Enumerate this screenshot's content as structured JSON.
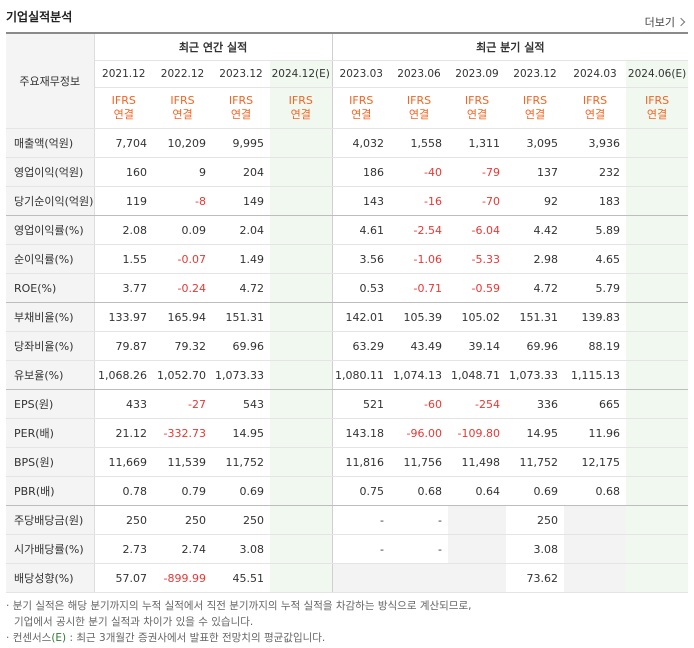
{
  "title": "기업실적분석",
  "more_label": "더보기",
  "header": {
    "row_label": "주요재무정보",
    "annual_group": "최근 연간 실적",
    "quarter_group": "최근 분기 실적",
    "annual_periods": [
      "2021.12",
      "2022.12",
      "2023.12",
      "2024.12(E)"
    ],
    "quarter_periods": [
      "2023.03",
      "2023.06",
      "2023.09",
      "2023.12",
      "2024.03",
      "2024.06(E)"
    ],
    "ifrs_top": "IFRS",
    "ifrs_bottom": "연결"
  },
  "rows": [
    {
      "label": "매출액(억원)",
      "annual": [
        "7,704",
        "10,209",
        "9,995",
        ""
      ],
      "quarter": [
        "4,032",
        "1,558",
        "1,311",
        "3,095",
        "3,936",
        ""
      ]
    },
    {
      "label": "영업이익(억원)",
      "annual": [
        "160",
        "9",
        "204",
        ""
      ],
      "quarter": [
        "186",
        "-40",
        "-79",
        "137",
        "232",
        ""
      ]
    },
    {
      "label": "당기순이익(억원)",
      "annual": [
        "119",
        "-8",
        "149",
        ""
      ],
      "quarter": [
        "143",
        "-16",
        "-70",
        "92",
        "183",
        ""
      ]
    },
    {
      "label": "영업이익률(%)",
      "annual": [
        "2.08",
        "0.09",
        "2.04",
        ""
      ],
      "quarter": [
        "4.61",
        "-2.54",
        "-6.04",
        "4.42",
        "5.89",
        ""
      ]
    },
    {
      "label": "순이익률(%)",
      "annual": [
        "1.55",
        "-0.07",
        "1.49",
        ""
      ],
      "quarter": [
        "3.56",
        "-1.06",
        "-5.33",
        "2.98",
        "4.65",
        ""
      ]
    },
    {
      "label": "ROE(%)",
      "annual": [
        "3.77",
        "-0.24",
        "4.72",
        ""
      ],
      "quarter": [
        "0.53",
        "-0.71",
        "-0.59",
        "4.72",
        "5.79",
        ""
      ]
    },
    {
      "label": "부채비율(%)",
      "annual": [
        "133.97",
        "165.94",
        "151.31",
        ""
      ],
      "quarter": [
        "142.01",
        "105.39",
        "105.02",
        "151.31",
        "139.83",
        ""
      ]
    },
    {
      "label": "당좌비율(%)",
      "annual": [
        "79.87",
        "79.32",
        "69.96",
        ""
      ],
      "quarter": [
        "63.29",
        "43.49",
        "39.14",
        "69.96",
        "88.19",
        ""
      ]
    },
    {
      "label": "유보율(%)",
      "annual": [
        "1,068.26",
        "1,052.70",
        "1,073.33",
        ""
      ],
      "quarter": [
        "1,080.11",
        "1,074.13",
        "1,048.71",
        "1,073.33",
        "1,115.13",
        ""
      ]
    },
    {
      "label": "EPS(원)",
      "annual": [
        "433",
        "-27",
        "543",
        ""
      ],
      "quarter": [
        "521",
        "-60",
        "-254",
        "336",
        "665",
        ""
      ]
    },
    {
      "label": "PER(배)",
      "annual": [
        "21.12",
        "-332.73",
        "14.95",
        ""
      ],
      "quarter": [
        "143.18",
        "-96.00",
        "-109.80",
        "14.95",
        "11.96",
        ""
      ]
    },
    {
      "label": "BPS(원)",
      "annual": [
        "11,669",
        "11,539",
        "11,752",
        ""
      ],
      "quarter": [
        "11,816",
        "11,756",
        "11,498",
        "11,752",
        "12,175",
        ""
      ]
    },
    {
      "label": "PBR(배)",
      "annual": [
        "0.78",
        "0.79",
        "0.69",
        ""
      ],
      "quarter": [
        "0.75",
        "0.68",
        "0.64",
        "0.69",
        "0.68",
        ""
      ]
    },
    {
      "label": "주당배당금(원)",
      "annual": [
        "250",
        "250",
        "250",
        ""
      ],
      "quarter": [
        "-",
        "-",
        "",
        "250",
        "",
        ""
      ]
    },
    {
      "label": "시가배당률(%)",
      "annual": [
        "2.73",
        "2.74",
        "3.08",
        ""
      ],
      "quarter": [
        "-",
        "-",
        "",
        "3.08",
        "",
        ""
      ]
    },
    {
      "label": "배당성향(%)",
      "annual": [
        "57.07",
        "-899.99",
        "45.51",
        ""
      ],
      "quarter": [
        "",
        "",
        "",
        "73.62",
        "",
        ""
      ]
    }
  ],
  "notes": {
    "line1": "분기 실적은 해당 분기까지의 누적 실적에서 직전 분기까지의 누적 실적을 차감하는 방식으로 계산되므로,",
    "line2": "기업에서 공시한 분기 실적과 차이가 있을 수 있습니다.",
    "line3_prefix": "컨센서스",
    "line3_e": "(E)",
    "line3_rest": ": 최근 3개월간 증권사에서 발표한 전망치의 평균값입니다."
  },
  "colors": {
    "negative": "#e53935",
    "ifrs": "#f26522",
    "estimate_bg": "#f0f8f0"
  }
}
